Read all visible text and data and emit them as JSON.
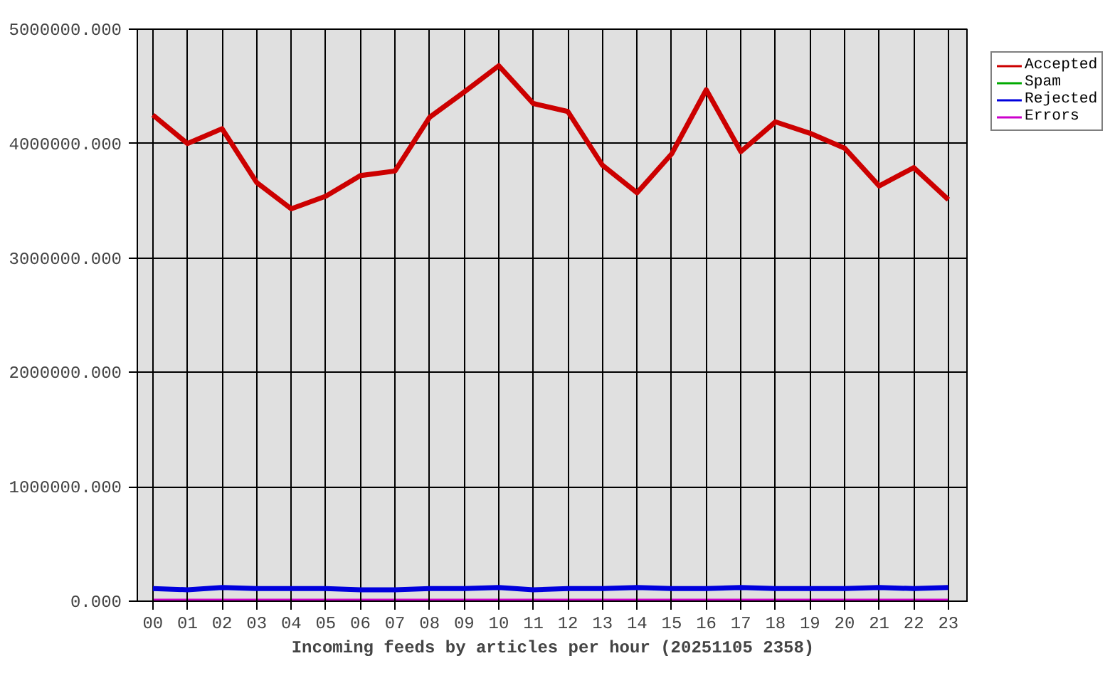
{
  "chart_data": {
    "type": "line",
    "xlabel": "Incoming feeds by articles per hour (20251105 2358)",
    "categories": [
      "00",
      "01",
      "02",
      "03",
      "04",
      "05",
      "06",
      "07",
      "08",
      "09",
      "10",
      "11",
      "12",
      "13",
      "14",
      "15",
      "16",
      "17",
      "18",
      "19",
      "20",
      "21",
      "22",
      "23"
    ],
    "series": [
      {
        "name": "Accepted",
        "color": "#cc0000",
        "values": [
          4250000,
          4000000,
          4130000,
          3660000,
          3430000,
          3540000,
          3720000,
          3760000,
          4230000,
          4450000,
          4680000,
          4350000,
          4280000,
          3810000,
          3570000,
          3910000,
          4470000,
          3930000,
          4190000,
          4090000,
          3960000,
          3630000,
          3790000,
          3510000
        ]
      },
      {
        "name": "Spam",
        "color": "#00aa00",
        "values": [
          null,
          null,
          null,
          null,
          null,
          null,
          null,
          null,
          null,
          null,
          null,
          null,
          null,
          null,
          null,
          null,
          null,
          null,
          null,
          null,
          null,
          null,
          null,
          null
        ]
      },
      {
        "name": "Rejected",
        "color": "#0000dd",
        "values": [
          110000,
          100000,
          120000,
          110000,
          110000,
          110000,
          100000,
          100000,
          110000,
          110000,
          120000,
          100000,
          110000,
          110000,
          120000,
          110000,
          110000,
          120000,
          110000,
          110000,
          110000,
          120000,
          110000,
          120000
        ]
      },
      {
        "name": "Errors",
        "color": "#cc00cc",
        "values": [
          0,
          0,
          0,
          0,
          0,
          0,
          0,
          0,
          0,
          0,
          0,
          0,
          0,
          0,
          0,
          0,
          0,
          0,
          0,
          0,
          0,
          0,
          0,
          0
        ]
      }
    ],
    "ylim": [
      0,
      5000000
    ],
    "yticks": [
      {
        "value": 0,
        "label": "0.000"
      },
      {
        "value": 1000000,
        "label": "1000000.000"
      },
      {
        "value": 2000000,
        "label": "2000000.000"
      },
      {
        "value": 3000000,
        "label": "3000000.000"
      },
      {
        "value": 4000000,
        "label": "4000000.000"
      },
      {
        "value": 5000000,
        "label": "5000000.000"
      }
    ],
    "grid": true,
    "legend": "top right",
    "marker": "none",
    "line_style": "solid"
  }
}
